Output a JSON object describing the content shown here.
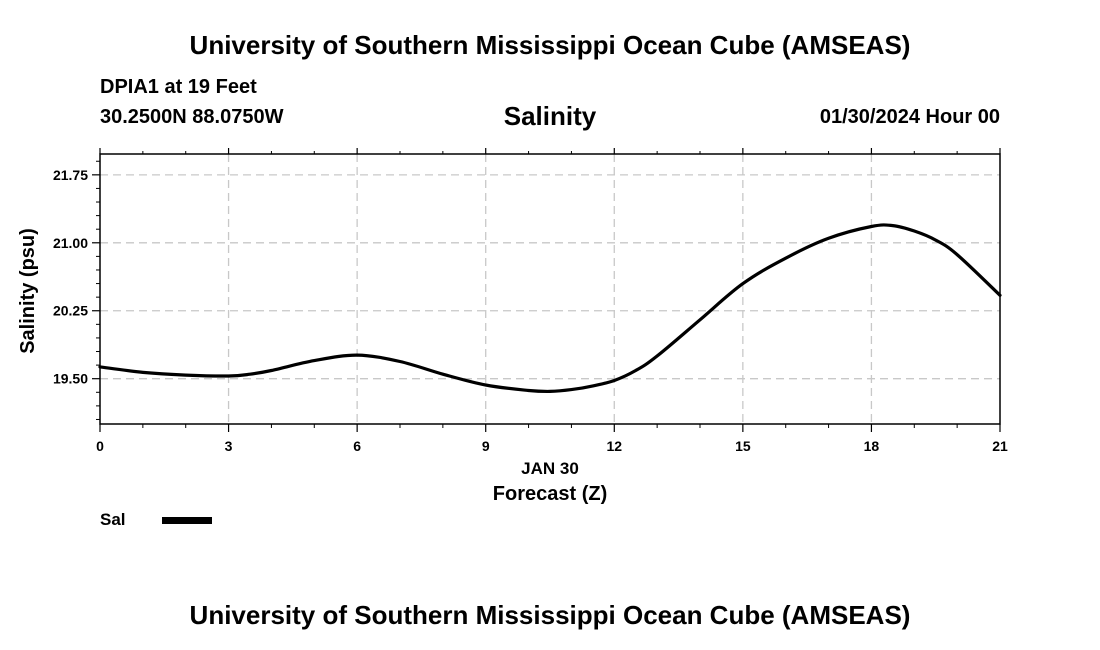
{
  "header": {
    "title": "University of Southern Mississippi Ocean Cube (AMSEAS)",
    "station": "DPIA1 at 19 Feet",
    "coords": "30.2500N  88.0750W",
    "subtitle": "Salinity",
    "datetime": "01/30/2024 Hour 00"
  },
  "footer": {
    "title": "University of Southern Mississippi Ocean Cube (AMSEAS)"
  },
  "legend": {
    "label": "Sal"
  },
  "chart_data": {
    "type": "line",
    "title": "Salinity",
    "xlabel": "Forecast (Z)",
    "xsublabel": "JAN 30",
    "ylabel": "Salinity (psu)",
    "xlim": [
      0,
      21
    ],
    "ylim": [
      19.0,
      21.98
    ],
    "xticks": [
      0,
      3,
      6,
      9,
      12,
      15,
      18,
      21
    ],
    "yticks": [
      19.5,
      20.25,
      21.0,
      21.75
    ],
    "ytick_labels": [
      "19.50",
      "20.25",
      "21.00",
      "21.75"
    ],
    "grid": true,
    "series": [
      {
        "name": "Sal",
        "color": "#000000",
        "x": [
          0,
          1,
          2,
          3,
          3.5,
          4,
          5,
          6,
          7,
          8,
          9,
          10,
          10.5,
          11,
          11.5,
          12,
          12.5,
          13,
          14,
          15,
          16,
          17,
          18,
          18.5,
          19,
          19.5,
          20,
          21
        ],
        "y": [
          19.63,
          19.57,
          19.54,
          19.53,
          19.55,
          19.59,
          19.7,
          19.76,
          19.69,
          19.55,
          19.43,
          19.37,
          19.36,
          19.38,
          19.42,
          19.48,
          19.59,
          19.75,
          20.15,
          20.55,
          20.83,
          21.05,
          21.18,
          21.19,
          21.13,
          21.03,
          20.87,
          20.42
        ]
      }
    ]
  }
}
